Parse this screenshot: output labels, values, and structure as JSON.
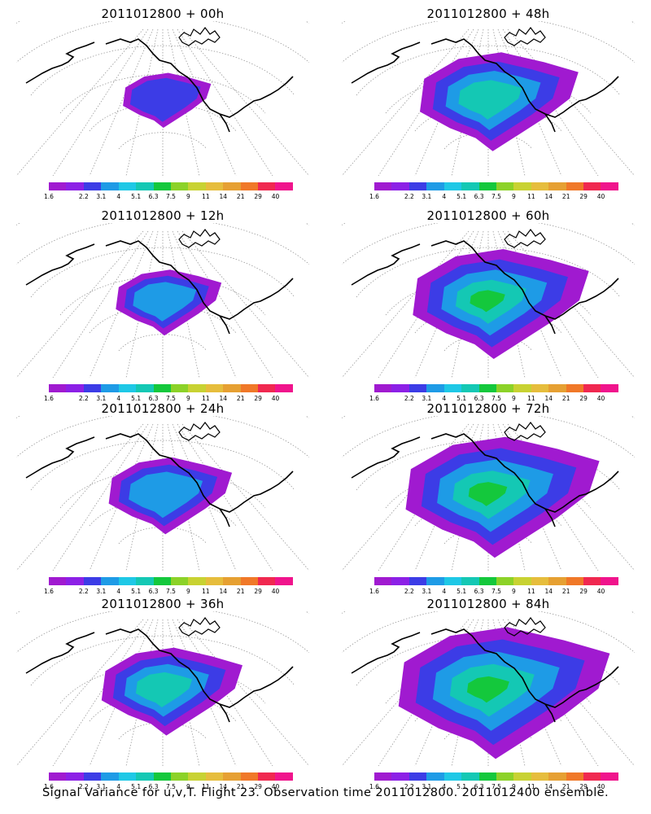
{
  "panels": [
    {
      "title": "2011012800 + 00h",
      "level": 0
    },
    {
      "title": "2011012800 + 48h",
      "level": 4
    },
    {
      "title": "2011012800 + 12h",
      "level": 1
    },
    {
      "title": "2011012800 + 60h",
      "level": 5
    },
    {
      "title": "2011012800 + 24h",
      "level": 2
    },
    {
      "title": "2011012800 + 72h",
      "level": 6
    },
    {
      "title": "2011012800 + 36h",
      "level": 3
    },
    {
      "title": "2011012800 + 84h",
      "level": 7
    }
  ],
  "colorbar": {
    "colors": [
      "#a01ad0",
      "#8c20e6",
      "#3c3ce6",
      "#1e9be6",
      "#1ec8e6",
      "#14c8b4",
      "#14c83c",
      "#8cd228",
      "#c8d232",
      "#e6bd3c",
      "#e6a032",
      "#f07828",
      "#f02850",
      "#f0148c"
    ],
    "ticks": [
      "1.6",
      "2.2",
      "3.1",
      "4",
      "5.1",
      "6.3",
      "7.5",
      "9",
      "11",
      "14",
      "21",
      "29",
      "40"
    ]
  },
  "caption": "Signal Variance for u,v,T. Flight 23. Observation time 2011012800. 2011012400 ensemble."
}
